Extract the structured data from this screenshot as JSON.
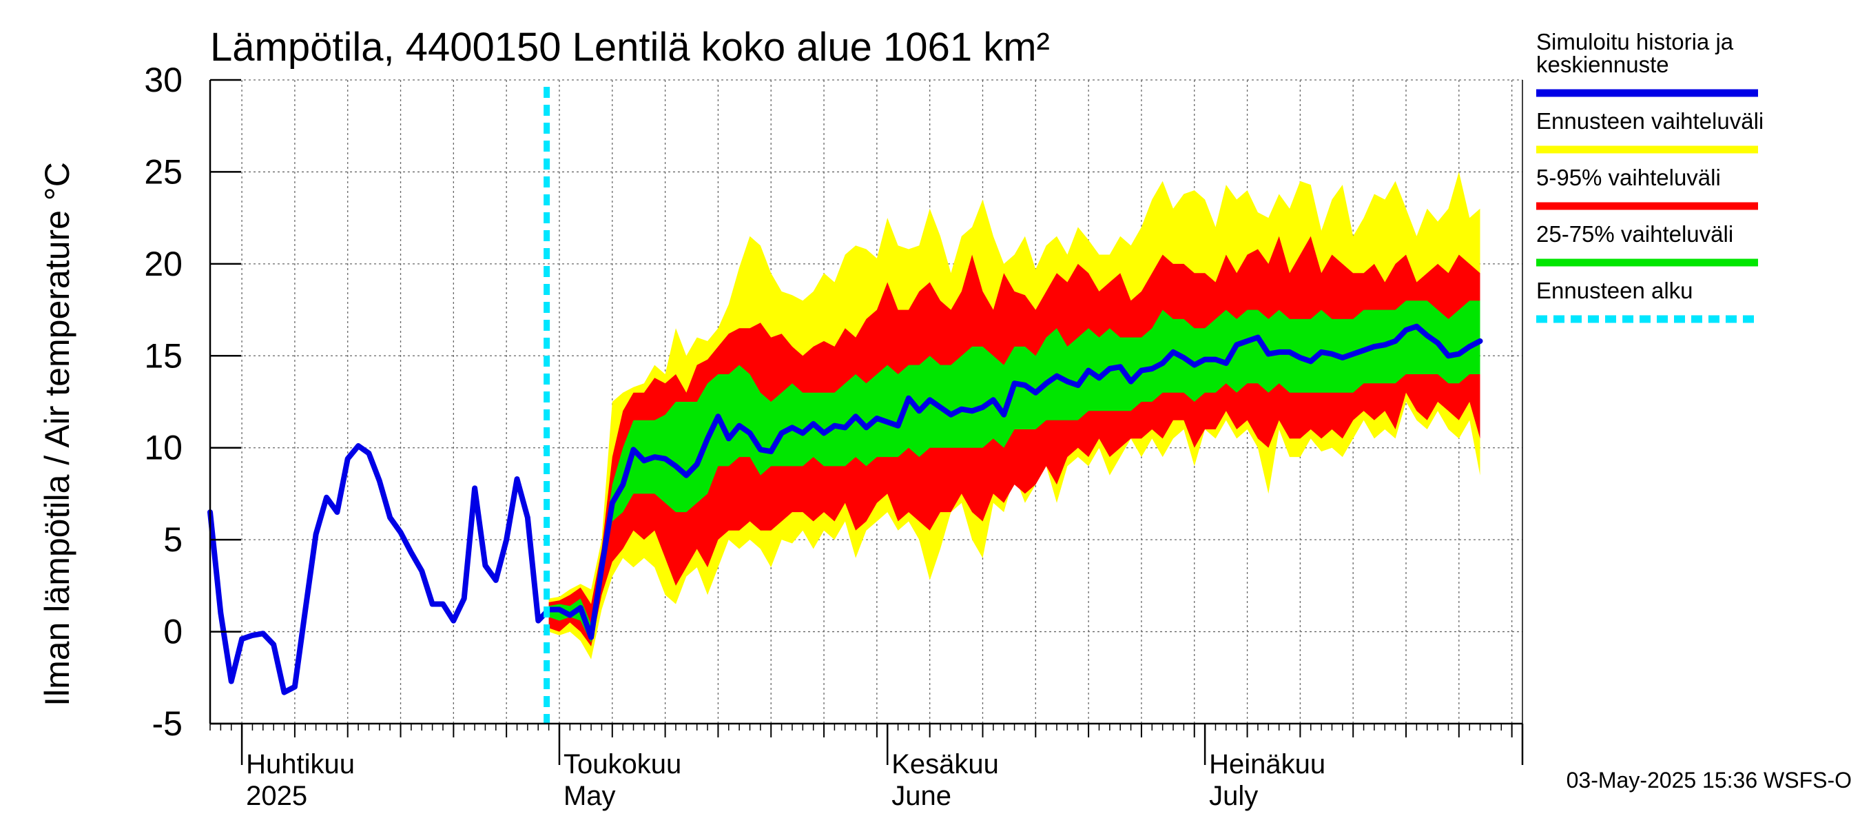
{
  "chart_data": {
    "type": "area",
    "title": "Lämpötila, 4400150 Lentilä koko alue 1061 km²",
    "ylabel": "Ilman lämpötila / Air temperature   °C",
    "ylim": [
      -5,
      30
    ],
    "yticks": [
      -5,
      0,
      5,
      10,
      15,
      20,
      25,
      30
    ],
    "xlim": [
      "2025-03-29",
      "2025-07-31"
    ],
    "grid": true,
    "month_labels": [
      {
        "line1": "Huhtikuu",
        "line2": "2025",
        "date": "2025-04-01"
      },
      {
        "line1": "Toukokuu",
        "line2": "May",
        "date": "2025-05-01"
      },
      {
        "line1": "Kesäkuu",
        "line2": "June",
        "date": "2025-06-01"
      },
      {
        "line1": "Heinäkuu",
        "line2": "July",
        "date": "2025-07-01"
      }
    ],
    "forecast_start": "2025-04-30",
    "history": {
      "dates": [
        "2025-03-29",
        "2025-03-30",
        "2025-03-31",
        "2025-04-01",
        "2025-04-02",
        "2025-04-03",
        "2025-04-04",
        "2025-04-05",
        "2025-04-06",
        "2025-04-07",
        "2025-04-08",
        "2025-04-09",
        "2025-04-10",
        "2025-04-11",
        "2025-04-12",
        "2025-04-13",
        "2025-04-14",
        "2025-04-15",
        "2025-04-16",
        "2025-04-17",
        "2025-04-18",
        "2025-04-19",
        "2025-04-20",
        "2025-04-21",
        "2025-04-22",
        "2025-04-23",
        "2025-04-24",
        "2025-04-25",
        "2025-04-26",
        "2025-04-27",
        "2025-04-28",
        "2025-04-29",
        "2025-04-30"
      ],
      "values": [
        6.5,
        1.0,
        -2.7,
        -0.4,
        -0.2,
        -0.1,
        -0.7,
        -3.3,
        -3.0,
        1.2,
        5.3,
        7.3,
        6.5,
        9.4,
        10.1,
        9.7,
        8.2,
        6.2,
        5.4,
        4.3,
        3.3,
        1.5,
        1.5,
        0.6,
        1.8,
        7.8,
        3.6,
        2.8,
        5.0,
        8.3,
        6.2,
        0.6,
        1.2
      ]
    },
    "series": [
      {
        "name": "Simuloitu historia ja keskiennuste",
        "color": "#0000e6",
        "values": [
          1.2,
          1.2,
          0.9,
          1.3,
          -0.3,
          3.5,
          7.0,
          8.0,
          9.9,
          9.3,
          9.5,
          9.4,
          9.0,
          8.5,
          9.1,
          10.5,
          11.7,
          10.5,
          11.2,
          10.8,
          9.9,
          9.8,
          10.8,
          11.1,
          10.8,
          11.3,
          10.8,
          11.2,
          11.1,
          11.7,
          11.1,
          11.6,
          11.4,
          11.2,
          12.7,
          12.0,
          12.6,
          12.2,
          11.8,
          12.1,
          12.0,
          12.2,
          12.6,
          11.8,
          13.5,
          13.4,
          13.0,
          13.5,
          13.9,
          13.6,
          13.4,
          14.2,
          13.8,
          14.3,
          14.4,
          13.6,
          14.2,
          14.3,
          14.6,
          15.2,
          14.9,
          14.5,
          14.8,
          14.8,
          14.6,
          15.6,
          15.8,
          16.0,
          15.1,
          15.2,
          15.2,
          14.9,
          14.7,
          15.2,
          15.1,
          14.9,
          15.1,
          15.3,
          15.5,
          15.6,
          15.8,
          16.4,
          16.6,
          16.1,
          15.7,
          15.0,
          15.1,
          15.5,
          15.8
        ]
      },
      {
        "name": "Ennusteen vaihteluväli",
        "color": "#ffff00",
        "upper": [
          1.8,
          1.9,
          2.3,
          2.6,
          2.3,
          5.0,
          12.5,
          13.0,
          13.3,
          13.5,
          14.5,
          14.0,
          16.5,
          15.0,
          16.0,
          15.8,
          16.5,
          17.8,
          19.8,
          21.5,
          21.0,
          19.5,
          18.5,
          18.3,
          18.0,
          18.5,
          19.5,
          19.0,
          20.5,
          21.0,
          20.8,
          20.3,
          22.5,
          21.0,
          20.8,
          21.0,
          23.0,
          21.5,
          19.5,
          21.5,
          22.0,
          23.5,
          21.5,
          20.0,
          20.5,
          21.5,
          19.7,
          21.0,
          21.5,
          20.5,
          22.0,
          21.3,
          20.5,
          20.5,
          21.5,
          21.0,
          22.0,
          23.5,
          24.5,
          23.0,
          23.8,
          24.0,
          23.5,
          22.0,
          24.3,
          23.5,
          24.0,
          22.8,
          22.5,
          23.8,
          23.0,
          24.5,
          24.3,
          21.8,
          23.5,
          24.3,
          21.5,
          22.5,
          23.8,
          23.5,
          24.5,
          23.0,
          21.5,
          23.0,
          22.3,
          23.0,
          25.0,
          22.5,
          23.0
        ],
        "lower": [
          0.0,
          -0.2,
          0.0,
          -0.5,
          -1.5,
          1.2,
          3.0,
          4.0,
          3.5,
          4.0,
          3.5,
          2.0,
          1.5,
          3.0,
          3.5,
          2.0,
          3.5,
          5.0,
          4.5,
          5.0,
          4.5,
          3.5,
          5.0,
          4.8,
          5.5,
          4.5,
          5.5,
          5.0,
          6.0,
          4.0,
          5.5,
          6.0,
          6.5,
          5.5,
          6.0,
          5.0,
          2.8,
          4.5,
          6.5,
          7.0,
          5.0,
          4.0,
          7.0,
          6.5,
          8.5,
          7.0,
          8.0,
          9.0,
          7.0,
          9.0,
          9.5,
          9.0,
          10.0,
          8.5,
          9.5,
          10.5,
          9.5,
          10.5,
          9.5,
          10.5,
          11.0,
          9.0,
          11.0,
          10.5,
          11.5,
          10.5,
          11.0,
          10.0,
          7.5,
          11.0,
          9.5,
          9.5,
          10.5,
          9.8,
          10.0,
          9.5,
          10.5,
          11.5,
          10.5,
          11.0,
          10.5,
          12.5,
          11.5,
          11.0,
          12.0,
          11.0,
          10.5,
          11.5,
          8.5
        ]
      },
      {
        "name": "5-95% vaihteluväli",
        "color": "#ff0000",
        "upper": [
          1.6,
          1.7,
          2.0,
          2.4,
          1.5,
          4.5,
          9.5,
          12.0,
          13.0,
          13.0,
          13.8,
          13.5,
          14.0,
          13.0,
          14.5,
          14.8,
          15.5,
          16.2,
          16.5,
          16.5,
          16.8,
          16.0,
          16.2,
          15.5,
          15.0,
          15.5,
          15.8,
          15.5,
          16.5,
          16.0,
          17.0,
          17.5,
          19.0,
          17.5,
          17.5,
          18.5,
          19.0,
          18.0,
          17.5,
          18.5,
          20.5,
          18.5,
          17.5,
          19.5,
          18.5,
          18.3,
          17.5,
          18.5,
          19.5,
          19.0,
          20.0,
          19.5,
          18.5,
          19.0,
          19.5,
          18.0,
          18.5,
          19.5,
          20.5,
          20.0,
          20.0,
          19.5,
          19.5,
          19.0,
          20.5,
          19.5,
          20.5,
          20.8,
          20.0,
          21.5,
          19.5,
          20.5,
          21.5,
          19.5,
          20.5,
          20.0,
          19.5,
          19.5,
          20.0,
          19.0,
          20.0,
          20.5,
          19.0,
          19.5,
          20.0,
          19.5,
          20.5,
          20.0,
          19.5
        ],
        "lower": [
          0.2,
          0.0,
          0.5,
          0.0,
          -0.8,
          2.0,
          3.8,
          4.5,
          5.5,
          5.0,
          5.5,
          4.0,
          2.5,
          3.5,
          4.5,
          3.5,
          5.0,
          5.5,
          5.5,
          6.0,
          5.5,
          5.5,
          6.0,
          6.5,
          6.5,
          6.0,
          6.5,
          6.0,
          7.0,
          5.5,
          6.0,
          7.0,
          7.5,
          6.0,
          6.5,
          6.0,
          5.5,
          6.5,
          6.5,
          7.5,
          6.5,
          6.0,
          7.5,
          7.0,
          8.0,
          7.5,
          8.0,
          9.0,
          8.0,
          9.5,
          10.0,
          9.5,
          10.5,
          9.5,
          10.0,
          10.5,
          10.5,
          11.0,
          10.5,
          11.5,
          11.5,
          10.0,
          11.0,
          11.0,
          12.0,
          11.0,
          11.5,
          10.5,
          10.0,
          11.5,
          10.5,
          10.5,
          11.0,
          10.5,
          11.0,
          10.5,
          11.5,
          12.0,
          11.5,
          12.0,
          11.0,
          13.0,
          12.0,
          11.5,
          12.5,
          12.0,
          11.5,
          12.5,
          10.5
        ]
      },
      {
        "name": "25-75% vaihteluväli",
        "color": "#00e600",
        "upper": [
          1.4,
          1.5,
          1.4,
          1.8,
          0.4,
          4.0,
          8.0,
          10.0,
          11.5,
          11.5,
          11.5,
          11.8,
          12.5,
          12.5,
          12.5,
          13.5,
          14.0,
          14.0,
          14.5,
          14.0,
          13.0,
          12.5,
          13.0,
          13.5,
          13.0,
          13.0,
          13.0,
          13.0,
          13.5,
          14.0,
          13.5,
          14.0,
          14.5,
          14.0,
          14.5,
          14.5,
          15.0,
          14.5,
          14.5,
          15.0,
          15.5,
          15.5,
          15.0,
          14.5,
          15.5,
          15.5,
          15.0,
          16.0,
          16.5,
          15.5,
          16.0,
          16.5,
          16.0,
          16.5,
          16.0,
          16.0,
          16.0,
          16.5,
          17.5,
          17.0,
          17.0,
          16.5,
          16.5,
          17.0,
          17.5,
          17.0,
          17.5,
          17.5,
          17.0,
          17.5,
          17.0,
          17.0,
          17.0,
          17.5,
          17.0,
          17.0,
          17.0,
          17.5,
          17.5,
          17.5,
          17.5,
          18.0,
          18.0,
          18.0,
          17.5,
          17.0,
          17.5,
          18.0,
          18.0
        ],
        "lower": [
          0.8,
          0.6,
          0.8,
          0.6,
          -0.6,
          3.0,
          6.0,
          6.5,
          7.5,
          7.5,
          7.5,
          7.0,
          6.5,
          6.5,
          7.0,
          7.5,
          9.0,
          9.0,
          9.5,
          9.5,
          8.5,
          9.0,
          9.0,
          9.0,
          9.0,
          9.5,
          9.0,
          9.0,
          9.0,
          9.5,
          9.0,
          9.5,
          9.5,
          9.5,
          10.0,
          9.5,
          10.0,
          10.0,
          10.0,
          10.0,
          10.0,
          10.0,
          10.5,
          10.0,
          11.0,
          11.0,
          11.0,
          11.5,
          11.5,
          11.5,
          11.5,
          12.0,
          12.0,
          12.0,
          12.0,
          12.0,
          12.5,
          12.5,
          13.0,
          13.0,
          13.0,
          12.5,
          13.0,
          13.0,
          13.5,
          13.0,
          13.5,
          13.5,
          13.0,
          13.5,
          13.0,
          13.0,
          13.0,
          13.0,
          13.0,
          13.0,
          13.0,
          13.5,
          13.5,
          13.5,
          13.5,
          14.0,
          14.0,
          14.0,
          14.0,
          13.5,
          13.5,
          14.0,
          14.0
        ]
      },
      {
        "name": "Ennusteen alku",
        "color": "#00e6ff"
      }
    ]
  },
  "legend": {
    "items": [
      {
        "label": "Simuloitu historia ja\nkeskiennuste",
        "color": "#0000e6",
        "style": "solid"
      },
      {
        "label": "Ennusteen vaihteluväli",
        "color": "#ffff00",
        "style": "solid"
      },
      {
        "label": "5-95% vaihteluväli",
        "color": "#ff0000",
        "style": "solid"
      },
      {
        "label": "25-75% vaihteluväli",
        "color": "#00e600",
        "style": "solid"
      },
      {
        "label": "Ennusteen alku",
        "color": "#00e6ff",
        "style": "dashed"
      }
    ]
  },
  "footer": {
    "timestamp": "03-May-2025 15:36 WSFS-O"
  }
}
